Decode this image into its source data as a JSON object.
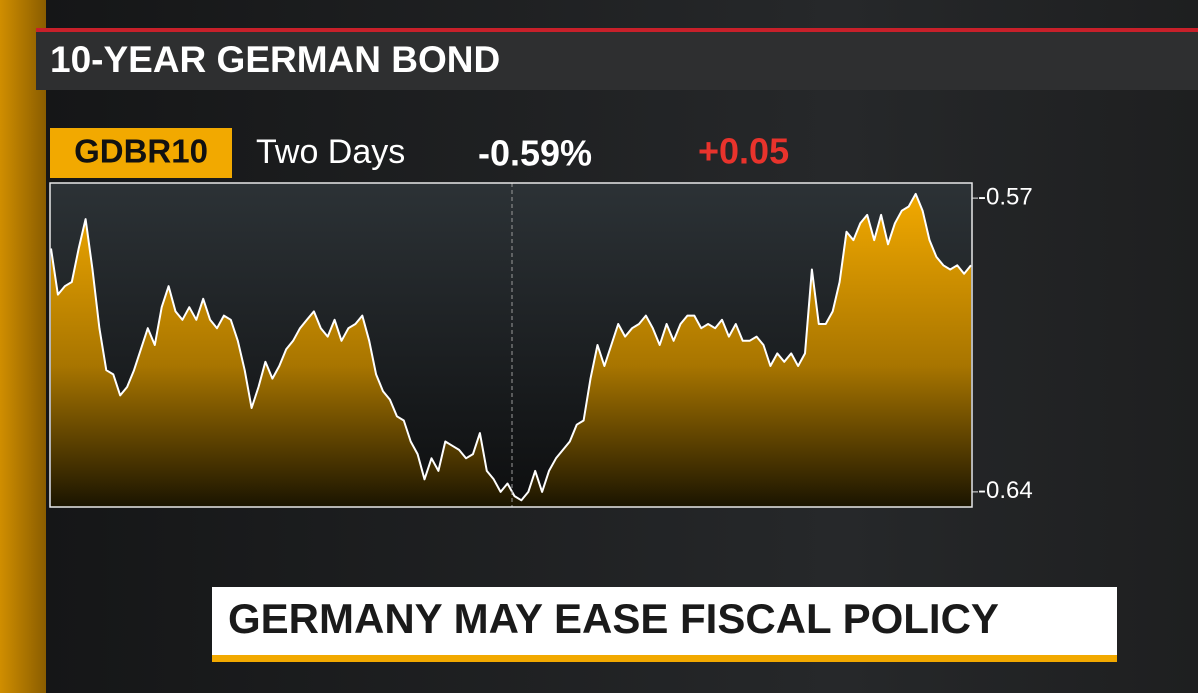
{
  "chart_data": {
    "type": "area",
    "title": "10-YEAR GERMAN BOND",
    "ticker": "GDBR10",
    "period": "Two Days",
    "last": "-0.59%",
    "change": "+0.05",
    "color": "#f2a900",
    "line_color": "#ffffff",
    "ylim": [
      -0.6436,
      -0.5664
    ],
    "yticks": [
      -0.57,
      -0.64
    ],
    "values": [
      -0.582,
      -0.593,
      -0.591,
      -0.59,
      -0.582,
      -0.575,
      -0.587,
      -0.601,
      -0.611,
      -0.612,
      -0.617,
      -0.615,
      -0.611,
      -0.606,
      -0.601,
      -0.605,
      -0.596,
      -0.591,
      -0.597,
      -0.599,
      -0.596,
      -0.599,
      -0.594,
      -0.599,
      -0.601,
      -0.598,
      -0.599,
      -0.604,
      -0.611,
      -0.62,
      -0.615,
      -0.609,
      -0.613,
      -0.61,
      -0.606,
      -0.604,
      -0.601,
      -0.599,
      -0.597,
      -0.601,
      -0.603,
      -0.599,
      -0.604,
      -0.601,
      -0.6,
      -0.598,
      -0.604,
      -0.612,
      -0.616,
      -0.618,
      -0.622,
      -0.623,
      -0.628,
      -0.631,
      -0.637,
      -0.632,
      -0.635,
      -0.628,
      -0.629,
      -0.63,
      -0.632,
      -0.631,
      -0.626,
      -0.635,
      -0.637,
      -0.64,
      -0.638,
      -0.641,
      -0.642,
      -0.64,
      -0.635,
      -0.64,
      -0.635,
      -0.632,
      -0.63,
      -0.628,
      -0.624,
      -0.623,
      -0.613,
      -0.605,
      -0.61,
      -0.605,
      -0.6,
      -0.603,
      -0.601,
      -0.6,
      -0.598,
      -0.601,
      -0.605,
      -0.6,
      -0.604,
      -0.6,
      -0.598,
      -0.598,
      -0.601,
      -0.6,
      -0.601,
      -0.599,
      -0.603,
      -0.6,
      -0.604,
      -0.604,
      -0.603,
      -0.605,
      -0.61,
      -0.607,
      -0.609,
      -0.607,
      -0.61,
      -0.607,
      -0.587,
      -0.6,
      -0.6,
      -0.597,
      -0.59,
      -0.578,
      -0.58,
      -0.576,
      -0.574,
      -0.58,
      -0.574,
      -0.581,
      -0.576,
      -0.573,
      -0.572,
      -0.569,
      -0.573,
      -0.58,
      -0.584,
      -0.586,
      -0.587,
      -0.586,
      -0.588,
      -0.586
    ]
  },
  "headline": "GERMANY MAY EASE FISCAL POLICY"
}
